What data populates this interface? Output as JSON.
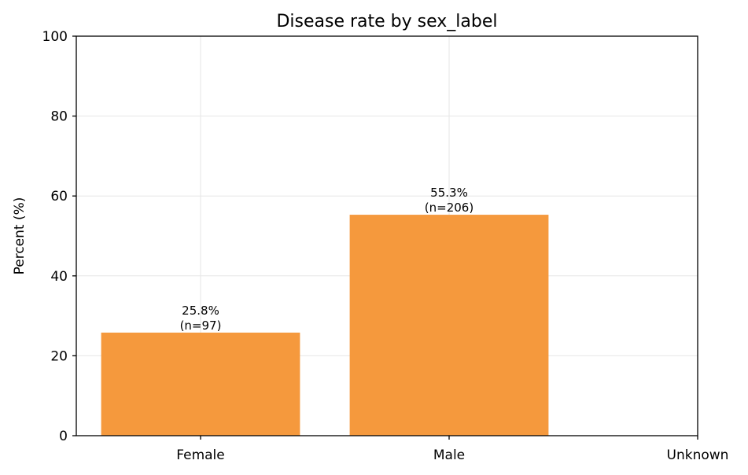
{
  "chart_data": {
    "type": "bar",
    "title": "Disease rate by sex_label",
    "xlabel": "",
    "ylabel": "Percent (%)",
    "categories": [
      "Female",
      "Male",
      "Unknown"
    ],
    "values": [
      25.8,
      55.3,
      null
    ],
    "data_labels": [
      [
        "25.8%",
        "(n=97)"
      ],
      [
        "55.3%",
        "(n=206)"
      ],
      null
    ],
    "ylim": [
      0,
      100
    ],
    "yticks": [
      0,
      20,
      40,
      60,
      80,
      100
    ],
    "grid": true,
    "bar_color": "#f5993d",
    "grid_color": "#e6e6e6"
  }
}
